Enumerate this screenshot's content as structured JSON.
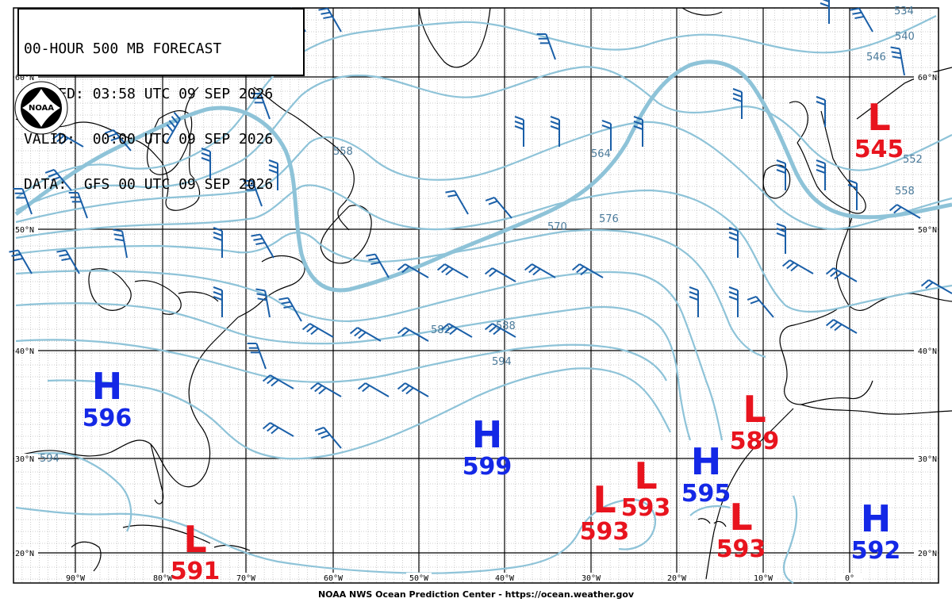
{
  "header": {
    "title": "00-HOUR 500 MB FORECAST",
    "issued": "ISSUED: 03:58 UTC 09 SEP 2026",
    "valid": "VALID:  00:00 UTC 09 SEP 2026",
    "data": "DATA:  GFS 00 UTC 09 SEP 2026"
  },
  "logo": {
    "text": "NOAA",
    "icon": "noaa-logo"
  },
  "footer": "NOAA NWS Ocean Prediction Center - https://ocean.weather.gov",
  "lat_labels": [
    "60°N",
    "50°N",
    "40°N",
    "30°N",
    "20°N"
  ],
  "lon_labels": [
    "90°W",
    "80°W",
    "70°W",
    "60°W",
    "50°W",
    "40°W",
    "30°W",
    "20°W",
    "10°W",
    "0°"
  ],
  "contour_labels": [
    "534",
    "540",
    "546",
    "552",
    "558",
    "564",
    "570",
    "576",
    "582",
    "588",
    "594"
  ],
  "pressure_centers": [
    {
      "type": "H",
      "value": "596"
    },
    {
      "type": "H",
      "value": "599"
    },
    {
      "type": "H",
      "value": "595"
    },
    {
      "type": "H",
      "value": "592"
    },
    {
      "type": "L",
      "value": "545"
    },
    {
      "type": "L",
      "value": "589"
    },
    {
      "type": "L",
      "value": "593"
    },
    {
      "type": "L",
      "value": "593"
    },
    {
      "type": "L",
      "value": "593"
    },
    {
      "type": "L",
      "value": "591"
    }
  ],
  "colors": {
    "high": "#1428e6",
    "low": "#e8141e",
    "contour": "#8ec3d8",
    "contour_bold": "#8ec3d8",
    "barb": "#1a5fa8",
    "grid_major": "#000000",
    "grid_minor": "#9a9a9a",
    "coast": "#000000"
  }
}
